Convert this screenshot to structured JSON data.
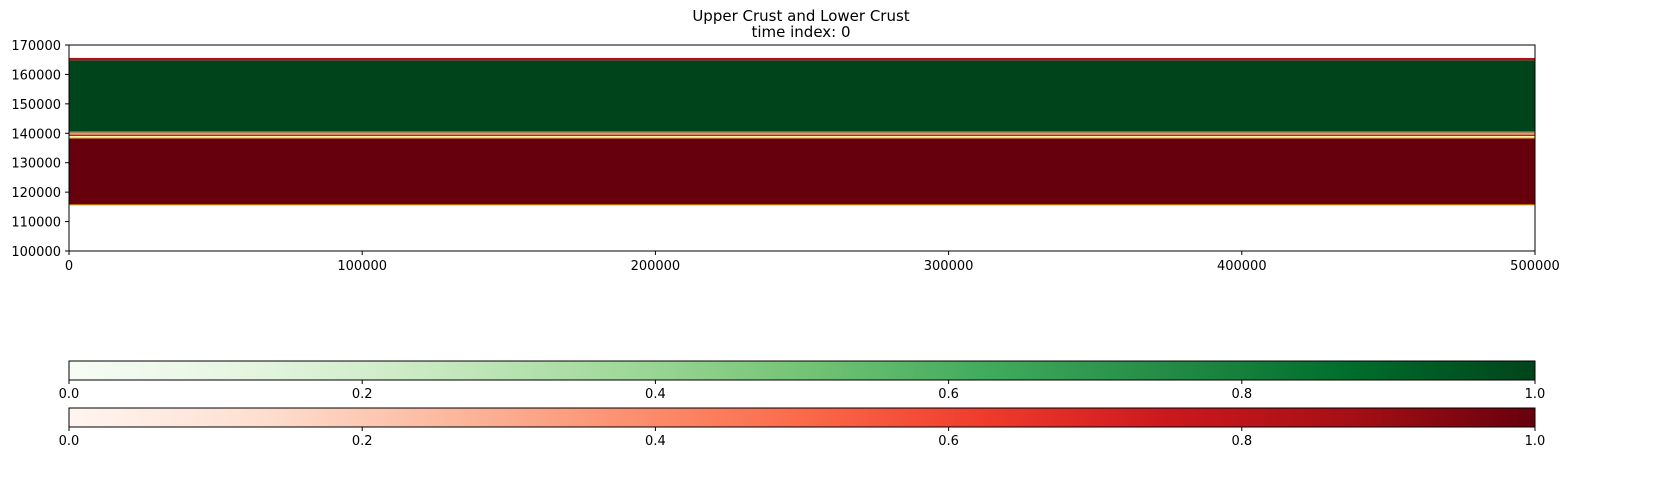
{
  "chart_data": {
    "type": "heatmap",
    "title": "Upper Crust and Lower Crust",
    "subtitle": "time index: 0",
    "xlabel": "",
    "ylabel": "",
    "xlim": [
      0,
      500000
    ],
    "ylim": [
      100000,
      170000
    ],
    "x_ticks": [
      0,
      100000,
      200000,
      300000,
      400000,
      500000
    ],
    "y_ticks": [
      100000,
      110000,
      120000,
      130000,
      140000,
      150000,
      160000,
      170000
    ],
    "grid": false,
    "layers": [
      {
        "field": "upper_crust",
        "colormap": "Greens",
        "y_range": [
          140300,
          164800
        ],
        "value": 1.0
      },
      {
        "field": "upper_crust",
        "colormap": "Greens",
        "y_range": [
          139900,
          140300
        ],
        "value": 0.5
      },
      {
        "field": "lower_crust",
        "colormap": "Reds",
        "y_range": [
          164800,
          165600
        ],
        "value": 0.85
      },
      {
        "field": "lower_crust",
        "colormap": "Reds",
        "y_range": [
          140300,
          140700
        ],
        "value": 0.6
      },
      {
        "field": "lower_crust",
        "colormap": "Reds",
        "y_range": [
          139500,
          139900
        ],
        "value": 0.4
      },
      {
        "field": "lower_crust",
        "colormap": "Reds",
        "y_range": [
          139100,
          139500
        ],
        "value": 0.9
      },
      {
        "field": "lower_crust",
        "colormap": "Reds",
        "y_range": [
          115800,
          138300
        ],
        "value": 1.0
      }
    ],
    "interface_lines": [
      {
        "color": "#ffd800",
        "y": [
          138300,
          138700
        ]
      },
      {
        "color": "#fff4a0",
        "y": [
          138700,
          139100
        ]
      },
      {
        "color": "#ffd800",
        "y": [
          115400,
          115800
        ]
      }
    ],
    "colorbars": [
      {
        "colormap": "Greens",
        "range": [
          0.0,
          1.0
        ],
        "ticks": [
          "0.0",
          "0.2",
          "0.4",
          "0.6",
          "0.8",
          "1.0"
        ],
        "stops": [
          "#f7fcf5",
          "#e5f5e0",
          "#c7e9c0",
          "#a1d99b",
          "#74c476",
          "#41ab5d",
          "#238b45",
          "#006d2c",
          "#00441b"
        ]
      },
      {
        "colormap": "Reds",
        "range": [
          0.0,
          1.0
        ],
        "ticks": [
          "0.0",
          "0.2",
          "0.4",
          "0.6",
          "0.8",
          "1.0"
        ],
        "stops": [
          "#fff5f0",
          "#fee0d2",
          "#fcbba1",
          "#fc9272",
          "#fb6a4a",
          "#ef3b2c",
          "#cb181d",
          "#a50f15",
          "#67000d"
        ]
      }
    ]
  }
}
